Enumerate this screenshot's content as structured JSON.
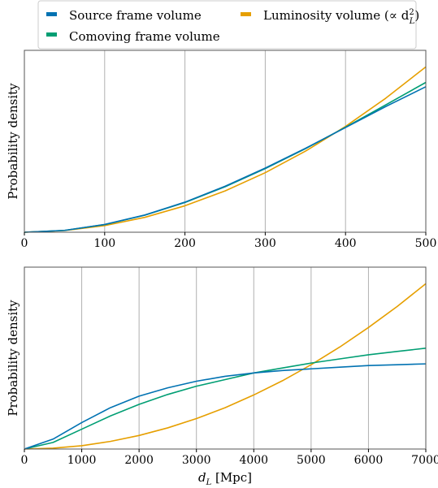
{
  "colors": {
    "source": "#0072b2",
    "comoving": "#009e73",
    "luminosity": "#e69f00",
    "grid": "#b0b0b0",
    "frame": "#555555"
  },
  "legend": {
    "items": [
      {
        "key": "source",
        "label": "Source frame volume"
      },
      {
        "key": "comoving",
        "label": "Comoving frame volume"
      },
      {
        "key": "luminosity",
        "label_main": "Luminosity volume (∝ d",
        "label_sup": "2",
        "label_sub": "L",
        "label_close": ")"
      }
    ]
  },
  "chart_data": [
    {
      "type": "line",
      "ylabel": "Probability density",
      "xlabel": "",
      "xlim": [
        0,
        500
      ],
      "ylim": [
        0,
        1.1
      ],
      "xticks": [
        0,
        100,
        200,
        300,
        400,
        500
      ],
      "grid_x": true,
      "series": [
        {
          "key": "luminosity",
          "name": "Luminosity volume",
          "x": [
            0,
            50,
            100,
            150,
            200,
            250,
            300,
            350,
            400,
            450,
            500
          ],
          "y": [
            0,
            0.01,
            0.04,
            0.09,
            0.16,
            0.25,
            0.36,
            0.49,
            0.64,
            0.81,
            1.0
          ]
        },
        {
          "key": "comoving",
          "name": "Comoving frame volume",
          "x": [
            0,
            50,
            100,
            150,
            200,
            250,
            300,
            350,
            400,
            450,
            500
          ],
          "y": [
            0,
            0.011,
            0.046,
            0.103,
            0.18,
            0.275,
            0.385,
            0.505,
            0.635,
            0.77,
            0.906
          ]
        },
        {
          "key": "source",
          "name": "Source frame volume",
          "x": [
            0,
            50,
            100,
            150,
            200,
            250,
            300,
            350,
            400,
            450,
            500
          ],
          "y": [
            0,
            0.011,
            0.047,
            0.104,
            0.182,
            0.278,
            0.388,
            0.507,
            0.633,
            0.76,
            0.88
          ]
        }
      ]
    },
    {
      "type": "line",
      "ylabel": "Probability density",
      "xlabel_main": "d",
      "xlabel_sub": "L",
      "xlabel_unit": " [Mpc]",
      "xlim": [
        0,
        7000
      ],
      "ylim": [
        0,
        1.1
      ],
      "xticks": [
        0,
        1000,
        2000,
        3000,
        4000,
        5000,
        6000,
        7000
      ],
      "grid_x": true,
      "series": [
        {
          "key": "luminosity",
          "name": "Luminosity volume",
          "x": [
            0,
            500,
            1000,
            1500,
            2000,
            2500,
            3000,
            3500,
            4000,
            4500,
            5000,
            5500,
            6000,
            6500,
            7000
          ],
          "y": [
            0,
            0.005,
            0.02,
            0.046,
            0.082,
            0.128,
            0.184,
            0.25,
            0.327,
            0.413,
            0.51,
            0.617,
            0.735,
            0.862,
            1.0
          ]
        },
        {
          "key": "comoving",
          "name": "Comoving frame volume",
          "x": [
            0,
            500,
            1000,
            1500,
            2000,
            2500,
            3000,
            3500,
            4000,
            4500,
            5000,
            5500,
            6000,
            6500,
            7000
          ],
          "y": [
            0,
            0.04,
            0.12,
            0.2,
            0.27,
            0.33,
            0.38,
            0.42,
            0.46,
            0.49,
            0.52,
            0.545,
            0.57,
            0.59,
            0.61
          ]
        },
        {
          "key": "source",
          "name": "Source frame volume",
          "x": [
            0,
            500,
            1000,
            1500,
            2000,
            2500,
            3000,
            3500,
            4000,
            4500,
            5000,
            5500,
            6000,
            6500,
            7000
          ],
          "y": [
            0,
            0.06,
            0.16,
            0.25,
            0.32,
            0.37,
            0.41,
            0.44,
            0.46,
            0.475,
            0.485,
            0.495,
            0.505,
            0.51,
            0.515
          ]
        }
      ]
    }
  ]
}
